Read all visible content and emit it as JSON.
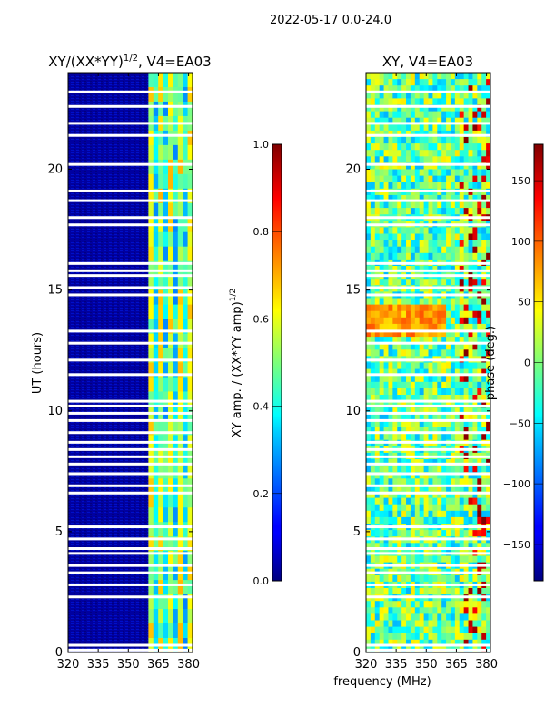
{
  "figure_title": "2022-05-17 0.0-24.0",
  "xlabel_shared": "frequency (MHz)",
  "chart_data": [
    {
      "type": "heatmap",
      "title": "XY/(XX*YY)",
      "title_sup": "1/2",
      "title_suffix": ", V4=EA03",
      "ylabel": "UT (hours)",
      "xlabel": "",
      "xlim": [
        320,
        382
      ],
      "ylim": [
        0,
        24
      ],
      "xticks": [
        "320",
        "335",
        "350",
        "365",
        "380"
      ],
      "xtick_values": [
        320,
        335,
        350,
        365,
        380
      ],
      "yticks": [
        "0",
        "5",
        "10",
        "15",
        "20"
      ],
      "ytick_values": [
        0,
        5,
        10,
        15,
        20
      ],
      "colormap": "jet",
      "colorbar": {
        "label": "XY amp. / (XX*YY amp)",
        "label_sup": "1/2",
        "range": [
          0.0,
          1.0
        ],
        "ticks": [
          "0.0",
          "0.2",
          "0.4",
          "0.6",
          "0.8",
          "1.0"
        ],
        "tick_values": [
          0.0,
          0.2,
          0.4,
          0.6,
          0.8,
          1.0
        ]
      },
      "description_values": {
        "low_band_MHz": [
          320,
          360
        ],
        "low_band_level": 0.05,
        "high_band_MHz": [
          360,
          382
        ],
        "high_band_level_range": [
          0.2,
          0.65
        ]
      }
    },
    {
      "type": "heatmap",
      "title": "XY, V4=EA03",
      "xlabel": "frequency (MHz)",
      "xlim": [
        320,
        382
      ],
      "ylim": [
        0,
        24
      ],
      "xticks": [
        "320",
        "335",
        "350",
        "365",
        "380"
      ],
      "xtick_values": [
        320,
        335,
        350,
        365,
        380
      ],
      "yticks": [
        "0",
        "5",
        "10",
        "15",
        "20"
      ],
      "ytick_values": [
        0,
        5,
        10,
        15,
        20
      ],
      "colormap": "jet",
      "colorbar": {
        "label": "phase (deg.)",
        "range": [
          -180,
          180
        ],
        "ticks": [
          "−150",
          "−100",
          "−50",
          "0",
          "50",
          "100",
          "150"
        ],
        "tick_values": [
          -150,
          -100,
          -50,
          0,
          50,
          100,
          150
        ]
      },
      "description_values": {
        "highlight_band_UT": [
          13,
          14.5
        ],
        "highlight_phase_deg": 80
      }
    }
  ],
  "gap_rows_hours": [
    0.1,
    0.3,
    2.3,
    2.8,
    3.3,
    3.6,
    4.1,
    4.3,
    4.7,
    5.2,
    6.6,
    6.9,
    7.4,
    7.8,
    8.1,
    8.4,
    8.7,
    9.1,
    9.6,
    9.9,
    10.2,
    10.4,
    11.5,
    12.1,
    12.8,
    13.3,
    14.8,
    15.1,
    15.6,
    15.8,
    16.1,
    17.7,
    18.0,
    18.7,
    19.1,
    20.2,
    21.4,
    21.9,
    22.6,
    23.2
  ]
}
